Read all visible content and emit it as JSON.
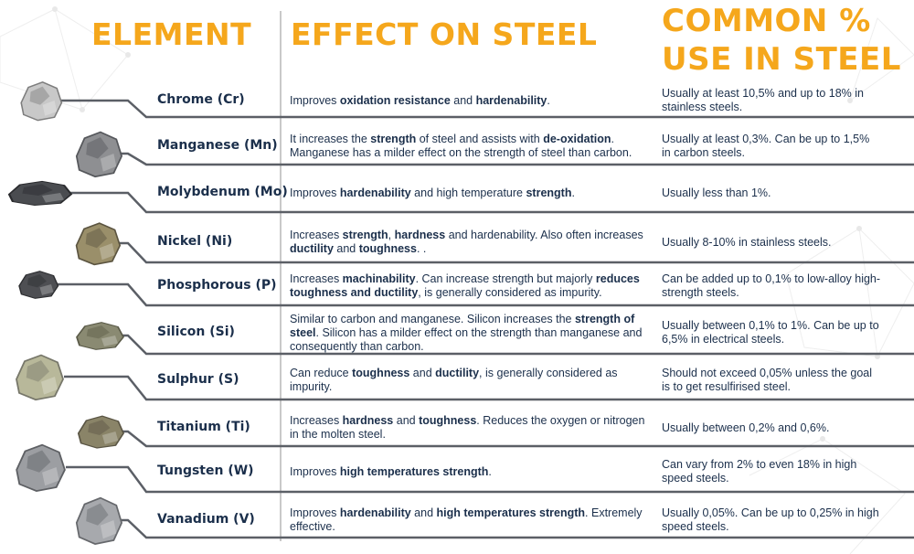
{
  "headers": {
    "element": "ELEMENT",
    "effect": "EFFECT ON STEEL",
    "common_line1": "COMMON %",
    "common_line2": "USE IN STEEL"
  },
  "colors": {
    "accent": "#f5a71c",
    "text": "#1b2f4b",
    "rule": "#c9c9c9",
    "connector": "#5b5f66"
  },
  "rows": [
    {
      "element": "Chrome (Cr)",
      "mineral_icon": "chrome-rock-icon",
      "effect": [
        [
          "Improves ",
          false
        ],
        [
          "oxidation resistance",
          true
        ],
        [
          " and ",
          false
        ],
        [
          "hardenability",
          true
        ],
        [
          ".",
          false
        ]
      ],
      "usage": "Usually at least 10,5% and up to 18% in stainless steels."
    },
    {
      "element": "Manganese (Mn)",
      "mineral_icon": "manganese-rock-icon",
      "effect": [
        [
          "It increases the ",
          false
        ],
        [
          "strength",
          true
        ],
        [
          " of steel and assists with ",
          false
        ],
        [
          "de-oxidation",
          true
        ],
        [
          ". Manganese has a milder effect on the strength of steel than carbon.",
          false
        ]
      ],
      "usage": "Usually at least 0,3%. Can be up to 1,5% in carbon steels."
    },
    {
      "element": "Molybdenum (Mo)",
      "mineral_icon": "molybdenum-powder-icon",
      "effect": [
        [
          "Improves ",
          false
        ],
        [
          "hardenability",
          true
        ],
        [
          " and high temperature ",
          false
        ],
        [
          "strength",
          true
        ],
        [
          ".",
          false
        ]
      ],
      "usage": "Usually less than 1%."
    },
    {
      "element": "Nickel (Ni)",
      "mineral_icon": "nickel-crystal-icon",
      "effect": [
        [
          "Increases ",
          false
        ],
        [
          "strength",
          true
        ],
        [
          ", ",
          false
        ],
        [
          "hardness",
          true
        ],
        [
          " and hardenability. Also often increases ",
          false
        ],
        [
          "ductility",
          true
        ],
        [
          " and ",
          false
        ],
        [
          "toughness",
          true
        ],
        [
          ". .",
          false
        ]
      ],
      "usage": "Usually 8-10% in stainless steels."
    },
    {
      "element": "Phosphorous (P)",
      "mineral_icon": "phosphorous-rock-icon",
      "effect": [
        [
          "Increases ",
          false
        ],
        [
          "machinability",
          true
        ],
        [
          ". Can increase strength but majorly ",
          false
        ],
        [
          "reduces toughness and ductility",
          true
        ],
        [
          ", is generally considered as impurity.",
          false
        ]
      ],
      "usage": "Can be added up to 0,1% to low-alloy high-strength steels."
    },
    {
      "element": "Silicon (Si)",
      "mineral_icon": "silicon-rock-icon",
      "effect": [
        [
          "Similar to carbon and manganese. Silicon increases the ",
          false
        ],
        [
          "strength of steel",
          true
        ],
        [
          ". Silicon has a milder effect on the strength than manganese and consequently than carbon.",
          false
        ]
      ],
      "usage": "Usually between 0,1% to 1%. Can be up to 6,5% in electrical steels."
    },
    {
      "element": "Sulphur (S)",
      "mineral_icon": "sulphur-rocks-icon",
      "effect": [
        [
          "Can reduce ",
          false
        ],
        [
          "toughness",
          true
        ],
        [
          " and ",
          false
        ],
        [
          "ductility",
          true
        ],
        [
          ", is generally considered as impurity.",
          false
        ]
      ],
      "usage": "Should not exceed 0,05% unless the goal is to get resulfirised steel."
    },
    {
      "element": "Titanium (Ti)",
      "mineral_icon": "titanium-rock-icon",
      "effect": [
        [
          "Increases ",
          false
        ],
        [
          "hardness",
          true
        ],
        [
          " and ",
          false
        ],
        [
          "toughness",
          true
        ],
        [
          ". Reduces the oxygen or nitrogen in the molten steel.",
          false
        ]
      ],
      "usage": "Usually between 0,2% and 0,6%."
    },
    {
      "element": "Tungsten (W)",
      "mineral_icon": "tungsten-rocks-icon",
      "effect": [
        [
          "Improves ",
          false
        ],
        [
          "high temperatures strength",
          true
        ],
        [
          ".",
          false
        ]
      ],
      "usage": "Can vary from 2% to even 18% in high speed steels."
    },
    {
      "element": "Vanadium (V)",
      "mineral_icon": "vanadium-rocks-icon",
      "effect": [
        [
          "Improves ",
          false
        ],
        [
          "hardenability",
          true
        ],
        [
          " and ",
          false
        ],
        [
          "high temperatures strength",
          true
        ],
        [
          ". Extremely effective.",
          false
        ]
      ],
      "usage": "Usually 0,05%. Can be up to 0,25% in high speed steels."
    }
  ]
}
